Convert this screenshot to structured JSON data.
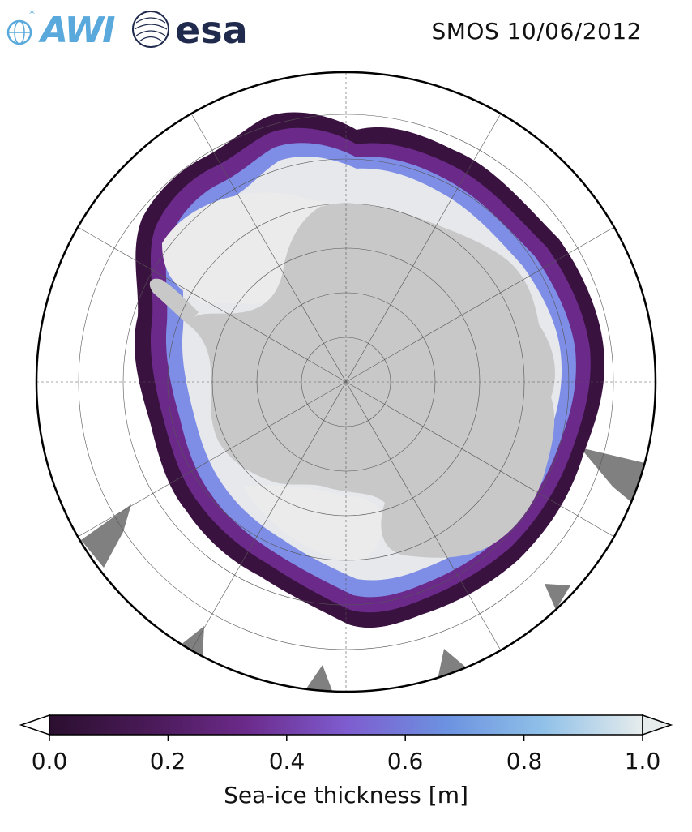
{
  "logos": {
    "awi": "AWI",
    "esa": "esa"
  },
  "title": "SMOS 10/06/2012",
  "map": {
    "projection": "south-polar-stereographic",
    "graticule": true,
    "land_color": "#c8c8c8",
    "ice_shelf_color": "#ebebeb",
    "no_data_color": "#808080"
  },
  "colorbar": {
    "label": "Sea-ice thickness [m]",
    "ticks": [
      "0.0",
      "0.2",
      "0.4",
      "0.6",
      "0.8",
      "1.0"
    ],
    "range": [
      0.0,
      1.0
    ],
    "colormap": [
      "#2b0f2f",
      "#4a1a58",
      "#6b2a8a",
      "#7e5ccf",
      "#6c92e0",
      "#8fc0e8",
      "#e6ecec"
    ],
    "extend": "both"
  }
}
